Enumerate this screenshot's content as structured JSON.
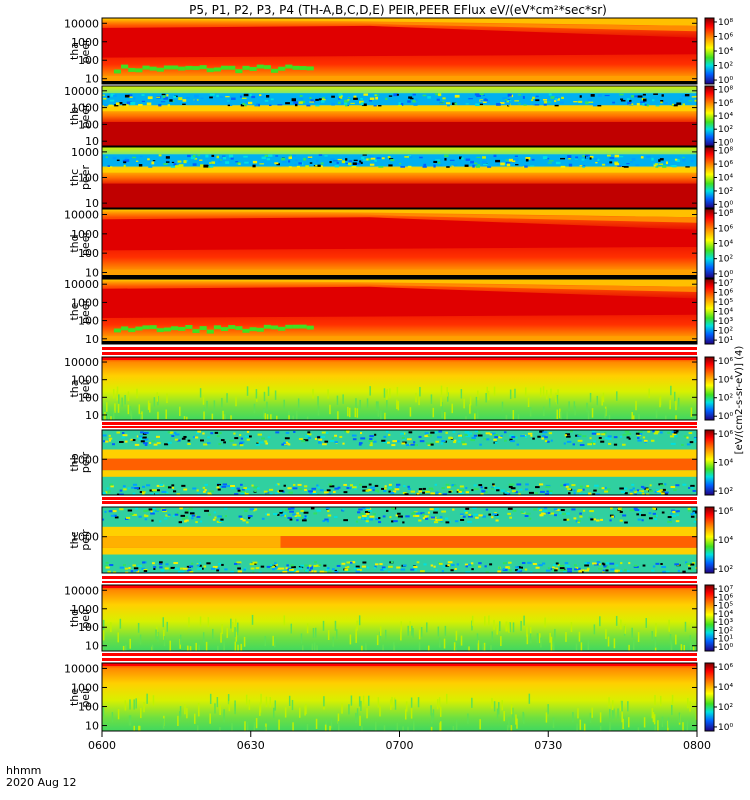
{
  "chart_data": {
    "type": "heatmap",
    "title": "P5, P1, P2, P3, P4 (TH-A,B,C,D,E) PEIR,PEER EFlux eV/(eV*cm²*sec*sr)",
    "time_axis": {
      "label_line1": "hhmm",
      "label_line2": "2020 Aug 12",
      "ticks": [
        "0600",
        "0630",
        "0700",
        "0730",
        "0800"
      ],
      "range": [
        "0600",
        "0800"
      ]
    },
    "colorbar_label": "[eV/(cm2-s-sr-eV)] (4)",
    "panels": [
      {
        "probe": "tha",
        "product": "peer",
        "label1": "tha",
        "label2": "peer",
        "yticks": [
          "10000",
          "1000",
          "100",
          "10"
        ],
        "cbar_ticks": [
          "10⁸",
          "10⁶",
          "10⁴",
          "10²",
          "10⁰"
        ],
        "pattern": "electron_tapering",
        "low_band": true
      },
      {
        "probe": "thb",
        "product": "peer",
        "label1": "thb",
        "label2": "peer",
        "yticks": [
          "10000",
          "1000",
          "100",
          "10"
        ],
        "cbar_ticks": [
          "10⁸",
          "10⁶",
          "10⁴",
          "10²",
          "10⁰"
        ],
        "pattern": "noisy_top"
      },
      {
        "probe": "thc",
        "product": "peer",
        "label1": "thc",
        "label2": "peer",
        "yticks": [
          "1000",
          "100",
          "10"
        ],
        "cbar_ticks": [
          "10⁸",
          "10⁶",
          "10⁴",
          "10²",
          "10⁰"
        ],
        "pattern": "noisy_top"
      },
      {
        "probe": "thd",
        "product": "peer",
        "label1": "thd",
        "label2": "peer",
        "yticks": [
          "10000",
          "1000",
          "100",
          "10"
        ],
        "cbar_ticks": [
          "10⁸",
          "10⁶",
          "10⁴",
          "10²",
          "10⁰"
        ],
        "pattern": "electron_tapering"
      },
      {
        "probe": "the",
        "product": "peer",
        "label1": "the",
        "label2": "peer",
        "yticks": [
          "10000",
          "1000",
          "100",
          "10"
        ],
        "cbar_ticks": [
          "10⁷",
          "10⁶",
          "10⁵",
          "10⁴",
          "10³",
          "10²",
          "10¹"
        ],
        "pattern": "electron_tapering",
        "low_band": true
      },
      {
        "probe": "tha",
        "product": "peir",
        "label1": "tha",
        "label2": "peir",
        "yticks": [
          "10000",
          "1000",
          "100",
          "10"
        ],
        "cbar_ticks": [
          "10⁶",
          "10⁴",
          "10²",
          "10⁰"
        ],
        "pattern": "ion"
      },
      {
        "probe": "thb",
        "product": "peir",
        "label1": "thb",
        "label2": "peir",
        "yticks": [
          "1000"
        ],
        "cbar_ticks": [
          "10⁶",
          "10⁴",
          "10²"
        ],
        "pattern": "ion_noisy"
      },
      {
        "probe": "thc",
        "product": "peir",
        "label1": "thc",
        "label2": "peir",
        "yticks": [
          "1000"
        ],
        "cbar_ticks": [
          "10⁶",
          "10⁴",
          "10²"
        ],
        "pattern": "ion_noisy"
      },
      {
        "probe": "thd",
        "product": "peir",
        "label1": "thd",
        "label2": "peir",
        "yticks": [
          "10000",
          "1000",
          "100",
          "10"
        ],
        "cbar_ticks": [
          "10⁷",
          "10⁶",
          "10⁵",
          "10⁴",
          "10³",
          "10²",
          "10¹",
          "10⁰"
        ],
        "pattern": "ion"
      },
      {
        "probe": "the",
        "product": "peir",
        "label1": "the",
        "label2": "peir",
        "yticks": [
          "10000",
          "1000",
          "100",
          "10"
        ],
        "cbar_ticks": [
          "10⁶",
          "10⁴",
          "10²",
          "10⁰"
        ],
        "pattern": "ion"
      }
    ]
  }
}
